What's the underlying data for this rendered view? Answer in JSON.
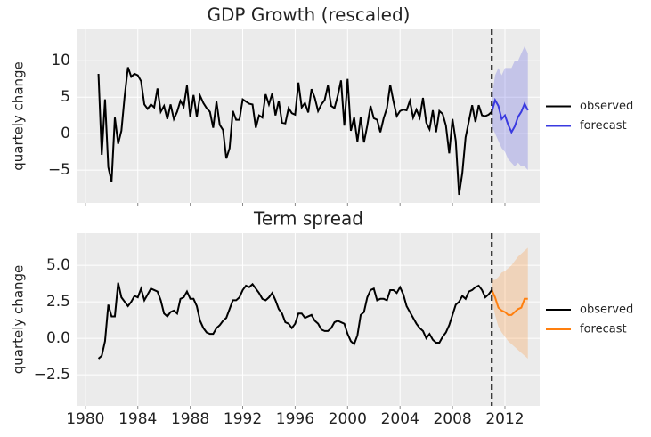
{
  "chart_data": [
    {
      "type": "line",
      "title": "GDP Growth (rescaled)",
      "ylabel": "quartely change",
      "xlim": [
        1979.4,
        2014.65
      ],
      "ylim": [
        -9.5,
        14.3
      ],
      "xticks": [
        1980,
        1984,
        1988,
        1992,
        1996,
        2000,
        2004,
        2008,
        2012
      ],
      "xticklabels": false,
      "yticks": [
        {
          "value": -5,
          "label": "−5"
        },
        0,
        5,
        10
      ],
      "grid": true,
      "vline": 2011,
      "legend": "right",
      "series": [
        {
          "name": "observed",
          "color": "#000000",
          "x": [
            1981,
            1981.25,
            1981.5,
            1981.75,
            1982,
            1982.25,
            1982.5,
            1982.75,
            1983,
            1983.25,
            1983.5,
            1983.75,
            1984,
            1984.25,
            1984.5,
            1984.75,
            1985,
            1985.25,
            1985.5,
            1985.75,
            1986,
            1986.25,
            1986.5,
            1986.75,
            1987,
            1987.25,
            1987.5,
            1987.75,
            1988,
            1988.25,
            1988.5,
            1988.75,
            1989,
            1989.25,
            1989.5,
            1989.75,
            1990,
            1990.25,
            1990.5,
            1990.75,
            1991,
            1991.25,
            1991.5,
            1991.75,
            1992,
            1992.25,
            1992.5,
            1992.75,
            1993,
            1993.25,
            1993.5,
            1993.75,
            1994,
            1994.25,
            1994.5,
            1994.75,
            1995,
            1995.25,
            1995.5,
            1995.75,
            1996,
            1996.25,
            1996.5,
            1996.75,
            1997,
            1997.25,
            1997.5,
            1997.75,
            1998,
            1998.25,
            1998.5,
            1998.75,
            1999,
            1999.25,
            1999.5,
            1999.75,
            2000,
            2000.25,
            2000.5,
            2000.75,
            2001,
            2001.25,
            2001.5,
            2001.75,
            2002,
            2002.25,
            2002.5,
            2002.75,
            2003,
            2003.25,
            2003.5,
            2003.75,
            2004,
            2004.25,
            2004.5,
            2004.75,
            2005,
            2005.25,
            2005.5,
            2005.75,
            2006,
            2006.25,
            2006.5,
            2006.75,
            2007,
            2007.25,
            2007.5,
            2007.75,
            2008,
            2008.25,
            2008.5,
            2008.75,
            2009,
            2009.25,
            2009.5,
            2009.75,
            2010,
            2010.25,
            2010.5,
            2010.75,
            2011
          ],
          "values": [
            8.2,
            -2.9,
            4.7,
            -4.6,
            -6.6,
            2.2,
            -1.4,
            0.4,
            5.2,
            9.1,
            7.8,
            8.2,
            8.0,
            7.2,
            4.0,
            3.4,
            4.0,
            3.6,
            6.2,
            3.0,
            3.8,
            2.0,
            4.0,
            2.0,
            3.0,
            4.5,
            3.7,
            6.6,
            2.3,
            5.3,
            2.3,
            5.2,
            4.2,
            3.5,
            3.0,
            0.8,
            4.4,
            1.2,
            0.5,
            -3.4,
            -2.0,
            3.1,
            1.9,
            1.9,
            4.7,
            4.4,
            4.1,
            4.0,
            0.8,
            2.5,
            2.2,
            5.4,
            4.0,
            5.5,
            2.5,
            4.5,
            1.5,
            1.4,
            3.5,
            2.8,
            2.6,
            7.0,
            3.6,
            4.2,
            2.9,
            6.1,
            4.9,
            3.1,
            4.0,
            4.6,
            6.6,
            3.8,
            3.5,
            5.2,
            7.3,
            1.1,
            7.5,
            0.4,
            2.2,
            -1.1,
            2.3,
            -1.2,
            1.1,
            3.8,
            2.1,
            1.9,
            0.2,
            2.1,
            3.5,
            6.7,
            4.4,
            2.4,
            3.1,
            3.3,
            3.2,
            4.5,
            2.2,
            3.3,
            2.2,
            4.9,
            1.5,
            0.6,
            3.2,
            0.2,
            3.1,
            2.7,
            1.1,
            -2.7,
            2.0,
            -1.0,
            -8.4,
            -5.4,
            -0.5,
            1.7,
            3.9,
            1.6,
            3.9,
            2.5,
            2.4,
            2.6,
            3.0
          ]
        },
        {
          "name": "forecast",
          "color": "#3a3ae0",
          "x": [
            2011,
            2011.25,
            2011.5,
            2011.75,
            2012,
            2012.25,
            2012.5,
            2012.75,
            2013,
            2013.25,
            2013.5,
            2013.75
          ],
          "values": [
            3.0,
            4.6,
            3.8,
            2.0,
            2.5,
            1.2,
            0.2,
            1.0,
            2.3,
            3.0,
            4.1,
            3.2
          ],
          "lower": [
            1,
            0,
            -1,
            -2,
            -2.5,
            -3.5,
            -4,
            -4.5,
            -4,
            -4.5,
            -4.5,
            -5
          ],
          "upper": [
            5,
            8,
            9,
            8,
            9,
            9,
            9,
            10,
            10,
            11,
            12,
            11
          ]
        }
      ]
    },
    {
      "type": "line",
      "title": "Term spread",
      "ylabel": "quartely change",
      "xlim": [
        1979.4,
        2014.65
      ],
      "ylim": [
        -4.63,
        7.2
      ],
      "xticks": [
        1980,
        1984,
        1988,
        1992,
        1996,
        2000,
        2004,
        2008,
        2012
      ],
      "xticklabels": true,
      "yticks": [
        {
          "value": -2.5,
          "label": "−2.5"
        },
        {
          "value": 0,
          "label": "0.0"
        },
        2.5,
        {
          "value": 5,
          "label": "5.0"
        }
      ],
      "grid": true,
      "vline": 2011,
      "legend": "right",
      "series": [
        {
          "name": "observed",
          "color": "#000000",
          "x": [
            1981,
            1981.25,
            1981.5,
            1981.75,
            1982,
            1982.25,
            1982.5,
            1982.75,
            1983,
            1983.25,
            1983.5,
            1983.75,
            1984,
            1984.25,
            1984.5,
            1984.75,
            1985,
            1985.25,
            1985.5,
            1985.75,
            1986,
            1986.25,
            1986.5,
            1986.75,
            1987,
            1987.25,
            1987.5,
            1987.75,
            1988,
            1988.25,
            1988.5,
            1988.75,
            1989,
            1989.25,
            1989.5,
            1989.75,
            1990,
            1990.25,
            1990.5,
            1990.75,
            1991,
            1991.25,
            1991.5,
            1991.75,
            1992,
            1992.25,
            1992.5,
            1992.75,
            1993,
            1993.25,
            1993.5,
            1993.75,
            1994,
            1994.25,
            1994.5,
            1994.75,
            1995,
            1995.25,
            1995.5,
            1995.75,
            1996,
            1996.25,
            1996.5,
            1996.75,
            1997,
            1997.25,
            1997.5,
            1997.75,
            1998,
            1998.25,
            1998.5,
            1998.75,
            1999,
            1999.25,
            1999.5,
            1999.75,
            2000,
            2000.25,
            2000.5,
            2000.75,
            2001,
            2001.25,
            2001.5,
            2001.75,
            2002,
            2002.25,
            2002.5,
            2002.75,
            2003,
            2003.25,
            2003.5,
            2003.75,
            2004,
            2004.25,
            2004.5,
            2004.75,
            2005,
            2005.25,
            2005.5,
            2005.75,
            2006,
            2006.25,
            2006.5,
            2006.75,
            2007,
            2007.25,
            2007.5,
            2007.75,
            2008,
            2008.25,
            2008.5,
            2008.75,
            2009,
            2009.25,
            2009.5,
            2009.75,
            2010,
            2010.25,
            2010.5,
            2010.75,
            2011
          ],
          "values": [
            -1.4,
            -1.2,
            -0.2,
            2.3,
            1.5,
            1.5,
            3.8,
            2.8,
            2.5,
            2.2,
            2.5,
            2.9,
            2.8,
            3.4,
            2.6,
            3.0,
            3.4,
            3.3,
            3.2,
            2.6,
            1.7,
            1.5,
            1.8,
            1.9,
            1.7,
            2.7,
            2.8,
            3.2,
            2.7,
            2.7,
            2.2,
            1.2,
            0.7,
            0.4,
            0.3,
            0.3,
            0.7,
            0.9,
            1.2,
            1.4,
            2.0,
            2.6,
            2.6,
            2.8,
            3.3,
            3.6,
            3.5,
            3.7,
            3.4,
            3.1,
            2.7,
            2.6,
            2.8,
            3.1,
            2.6,
            2.0,
            1.7,
            1.1,
            1.0,
            0.7,
            1.0,
            1.7,
            1.7,
            1.4,
            1.5,
            1.6,
            1.2,
            1.0,
            0.6,
            0.5,
            0.5,
            0.7,
            1.1,
            1.2,
            1.1,
            1.0,
            0.3,
            -0.2,
            -0.4,
            0.2,
            1.6,
            1.8,
            2.8,
            3.3,
            3.4,
            2.6,
            2.7,
            2.7,
            2.6,
            3.3,
            3.3,
            3.1,
            3.5,
            3.0,
            2.2,
            1.8,
            1.4,
            1.0,
            0.7,
            0.5,
            0.0,
            0.3,
            -0.1,
            -0.3,
            -0.3,
            0.1,
            0.4,
            0.9,
            1.6,
            2.3,
            2.5,
            2.9,
            2.7,
            3.2,
            3.3,
            3.5,
            3.6,
            3.3,
            2.8,
            3.0,
            3.3
          ]
        },
        {
          "name": "forecast",
          "color": "#ff7f0e",
          "x": [
            2011,
            2011.25,
            2011.5,
            2011.75,
            2012,
            2012.25,
            2012.5,
            2012.75,
            2013,
            2013.25,
            2013.5,
            2013.75
          ],
          "values": [
            3.3,
            2.8,
            2.1,
            1.9,
            1.8,
            1.6,
            1.6,
            1.8,
            2.0,
            2.1,
            2.7,
            2.7
          ],
          "lower": [
            2.6,
            1.6,
            0.8,
            0.4,
            0.1,
            -0.2,
            -0.4,
            -0.6,
            -0.8,
            -1.0,
            -1.2,
            -1.4
          ],
          "upper": [
            4.0,
            4.0,
            4.2,
            4.5,
            4.6,
            4.8,
            5.0,
            5.3,
            5.6,
            5.8,
            6.0,
            6.2
          ]
        }
      ]
    }
  ]
}
